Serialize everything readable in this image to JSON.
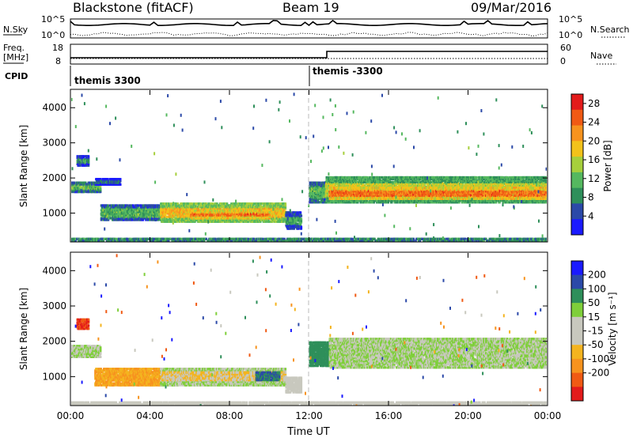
{
  "header": {
    "radar": "Blackstone (fitACF)",
    "beam": "Beam 19",
    "date": "09/Mar/2016"
  },
  "aux": {
    "nsky_label": "N.Sky",
    "nsearch_label": "N.Search",
    "freq_label": "Freq.",
    "freq_unit": "[MHz]",
    "nave_label": "Nave",
    "cpid_label": "CPID",
    "noise_ticks": [
      "10^5",
      "10^0"
    ],
    "freq_ticks": [
      "18",
      "8"
    ],
    "nave_ticks": [
      "60",
      "0"
    ],
    "cpid_segments": [
      "themis 3300",
      "themis -3300"
    ]
  },
  "colors": {
    "power": [
      "#1a1aff",
      "#2b49a8",
      "#2e8f5a",
      "#55b85f",
      "#a6cf3c",
      "#f2c21a",
      "#f7931e",
      "#f05a14",
      "#e31b1b"
    ],
    "velocity": [
      "#e31b1b",
      "#f05a14",
      "#f7931e",
      "#f4b41f",
      "#c8c8be",
      "#c8c8be",
      "#7fcf3a",
      "#2e8f5a",
      "#2b49a8",
      "#1a1aff"
    ],
    "dash": "#bbbbbb"
  },
  "chart_data": [
    {
      "type": "heatmap",
      "title": "",
      "xlabel": "",
      "ylabel": "Slant Range [km]",
      "xlim": [
        0,
        24
      ],
      "ylim": [
        180,
        4500
      ],
      "x_ticks": [
        0,
        4,
        8,
        12,
        16,
        20,
        24
      ],
      "y_ticks": [
        1000,
        2000,
        3000,
        4000
      ],
      "colorbar_label": "Power [dB]",
      "colorbar_ticks": [
        4,
        8,
        12,
        16,
        20,
        24,
        28
      ],
      "colorbar_range": [
        0,
        30
      ],
      "bands": [
        {
          "t": [
            0,
            1.5
          ],
          "range": [
            1600,
            1900
          ],
          "value": 12
        },
        {
          "t": [
            0.3,
            0.9
          ],
          "range": [
            2350,
            2650
          ],
          "value": 9
        },
        {
          "t": [
            1.2,
            2.5
          ],
          "range": [
            1800,
            2000
          ],
          "value": 6
        },
        {
          "t": [
            1.5,
            4.5
          ],
          "range": [
            800,
            1250
          ],
          "value": 11
        },
        {
          "t": [
            4.5,
            10.8
          ],
          "range": [
            750,
            1300
          ],
          "value": 19
        },
        {
          "t": [
            6.0,
            10.0
          ],
          "range": [
            850,
            1100
          ],
          "value": 24
        },
        {
          "t": [
            10.8,
            11.6
          ],
          "range": [
            550,
            1050
          ],
          "value": 10
        },
        {
          "t": [
            12.0,
            12.8
          ],
          "range": [
            1300,
            1900
          ],
          "value": 12
        },
        {
          "t": [
            12.8,
            24.0
          ],
          "range": [
            1300,
            2050
          ],
          "value": 16
        },
        {
          "t": [
            13.0,
            24.0
          ],
          "range": [
            1400,
            1750
          ],
          "value": 24
        },
        {
          "t": [
            0,
            24
          ],
          "range": [
            200,
            300
          ],
          "value": 14
        }
      ]
    },
    {
      "type": "heatmap",
      "title": "",
      "xlabel": "Time UT",
      "ylabel": "Slant Range [km]",
      "xlim": [
        0,
        24
      ],
      "ylim": [
        180,
        4500
      ],
      "x_ticks": [
        0,
        4,
        8,
        12,
        16,
        20,
        24
      ],
      "x_tick_labels": [
        "00:00",
        "04:00",
        "08:00",
        "12:00",
        "16:00",
        "20:00",
        "00:00"
      ],
      "y_ticks": [
        1000,
        2000,
        3000,
        4000
      ],
      "colorbar_label": "Velocity [m s⁻¹]",
      "colorbar_ticks": [
        "200",
        "100",
        "50",
        "15",
        "-15",
        "-50",
        "-100",
        "-200"
      ],
      "bands": [
        {
          "t": [
            0,
            1.5
          ],
          "range": [
            1550,
            1900
          ],
          "value": 0
        },
        {
          "t": [
            0.3,
            0.9
          ],
          "range": [
            2350,
            2650
          ],
          "value": -200
        },
        {
          "t": [
            1.2,
            4.5
          ],
          "range": [
            750,
            1250
          ],
          "value": -50
        },
        {
          "t": [
            4.5,
            10.8
          ],
          "range": [
            750,
            1250
          ],
          "value": 0
        },
        {
          "t": [
            4.5,
            10.8
          ],
          "range": [
            900,
            1150
          ],
          "value": -30
        },
        {
          "t": [
            9.3,
            10.5
          ],
          "range": [
            900,
            1150
          ],
          "value": 50
        },
        {
          "t": [
            10.8,
            11.6
          ],
          "range": [
            550,
            1000
          ],
          "value": -20
        },
        {
          "t": [
            12.0,
            13.0
          ],
          "range": [
            1300,
            2000
          ],
          "value": 30
        },
        {
          "t": [
            13.0,
            24.0
          ],
          "range": [
            1250,
            2100
          ],
          "value": 0
        },
        {
          "t": [
            0,
            24
          ],
          "range": [
            200,
            300
          ],
          "value": -20
        }
      ]
    }
  ]
}
